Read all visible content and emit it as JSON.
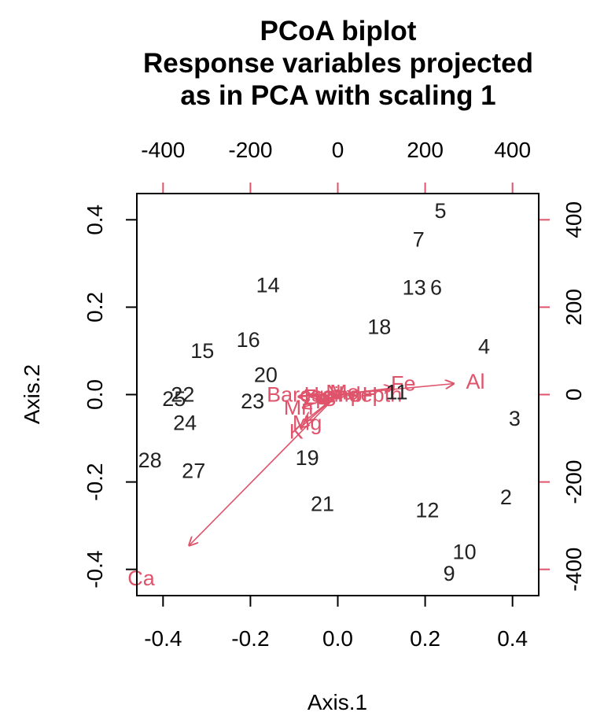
{
  "chart_data": {
    "type": "scatter",
    "title_lines": [
      "PCoA biplot",
      "Response variables projected",
      "as in PCA with scaling 1"
    ],
    "xlabel": "Axis.1",
    "ylabel": "Axis.2",
    "xlim": [
      -0.46,
      0.46
    ],
    "ylim": [
      -0.46,
      0.46
    ],
    "x_ticks": [
      "-0.4",
      "-0.2",
      "0.0",
      "0.2",
      "0.4"
    ],
    "y_ticks": [
      "-0.4",
      "-0.2",
      "0.0",
      "0.2",
      "0.4"
    ],
    "top_ticks": [
      "-400",
      "-200",
      "0",
      "200",
      "400"
    ],
    "right_ticks": [
      "-400",
      "-200",
      "0",
      "200",
      "400"
    ],
    "secondary_lim": [
      -460,
      460
    ],
    "secondary_axis_color": "#DF536B",
    "point_color": "#222222",
    "arrow_color": "#DF536B",
    "sites": [
      {
        "label": "5",
        "x": 0.235,
        "y": 0.42
      },
      {
        "label": "7",
        "x": 0.185,
        "y": 0.355
      },
      {
        "label": "13",
        "x": 0.175,
        "y": 0.245
      },
      {
        "label": "6",
        "x": 0.225,
        "y": 0.245
      },
      {
        "label": "14",
        "x": -0.16,
        "y": 0.25
      },
      {
        "label": "18",
        "x": 0.095,
        "y": 0.155
      },
      {
        "label": "16",
        "x": -0.205,
        "y": 0.125
      },
      {
        "label": "15",
        "x": -0.31,
        "y": 0.1
      },
      {
        "label": "4",
        "x": 0.335,
        "y": 0.11
      },
      {
        "label": "20",
        "x": -0.165,
        "y": 0.045
      },
      {
        "label": "11",
        "x": 0.135,
        "y": 0.005
      },
      {
        "label": "25",
        "x": -0.375,
        "y": -0.01
      },
      {
        "label": "22",
        "x": -0.355,
        "y": 0.0
      },
      {
        "label": "23",
        "x": -0.195,
        "y": -0.015
      },
      {
        "label": "24",
        "x": -0.35,
        "y": -0.065
      },
      {
        "label": "3",
        "x": 0.405,
        "y": -0.055
      },
      {
        "label": "19",
        "x": -0.07,
        "y": -0.145
      },
      {
        "label": "28",
        "x": -0.43,
        "y": -0.15
      },
      {
        "label": "27",
        "x": -0.33,
        "y": -0.175
      },
      {
        "label": "21",
        "x": -0.035,
        "y": -0.25
      },
      {
        "label": "12",
        "x": 0.205,
        "y": -0.265
      },
      {
        "label": "2",
        "x": 0.385,
        "y": -0.235
      },
      {
        "label": "10",
        "x": 0.29,
        "y": -0.36
      },
      {
        "label": "9",
        "x": 0.255,
        "y": -0.41
      }
    ],
    "variables": [
      {
        "label": "Ca",
        "x": -340,
        "y": -345
      },
      {
        "label": "Al",
        "x": 265,
        "y": 25
      },
      {
        "label": "Fe",
        "x": 125,
        "y": 15
      },
      {
        "label": "K",
        "x": -85,
        "y": -75
      },
      {
        "label": "Mg",
        "x": -75,
        "y": -60
      },
      {
        "label": "Mn",
        "x": -80,
        "y": -30
      },
      {
        "label": "P",
        "x": -40,
        "y": -20
      },
      {
        "label": "S",
        "x": -30,
        "y": -15
      },
      {
        "label": "Baresoil",
        "x": -90,
        "y": -5
      },
      {
        "label": "Zn",
        "x": -60,
        "y": -5
      },
      {
        "label": "N",
        "x": -20,
        "y": 5
      },
      {
        "label": "Mo",
        "x": 10,
        "y": 0
      },
      {
        "label": "Humdepth",
        "x": 20,
        "y": 0
      },
      {
        "label": "pH",
        "x": 40,
        "y": -2
      }
    ],
    "variable_label_positions": [
      {
        "label": "Ca",
        "x": -450,
        "y": -420
      },
      {
        "label": "Al",
        "x": 315,
        "y": 30
      },
      {
        "label": "Fe",
        "x": 150,
        "y": 25
      },
      {
        "label": "K",
        "x": -95,
        "y": -85
      },
      {
        "label": "Mg",
        "x": -70,
        "y": -65
      },
      {
        "label": "Mn",
        "x": -90,
        "y": -30
      },
      {
        "label": "P",
        "x": -35,
        "y": -15
      },
      {
        "label": "S",
        "x": -20,
        "y": -10
      },
      {
        "label": "Baresoil",
        "x": -75,
        "y": 0
      },
      {
        "label": "Zn",
        "x": -50,
        "y": -5
      },
      {
        "label": "N",
        "x": -10,
        "y": 5
      },
      {
        "label": "Mo",
        "x": 15,
        "y": 5
      },
      {
        "label": "Humdepth",
        "x": 35,
        "y": 0
      },
      {
        "label": "pH",
        "x": 60,
        "y": 0
      }
    ]
  }
}
